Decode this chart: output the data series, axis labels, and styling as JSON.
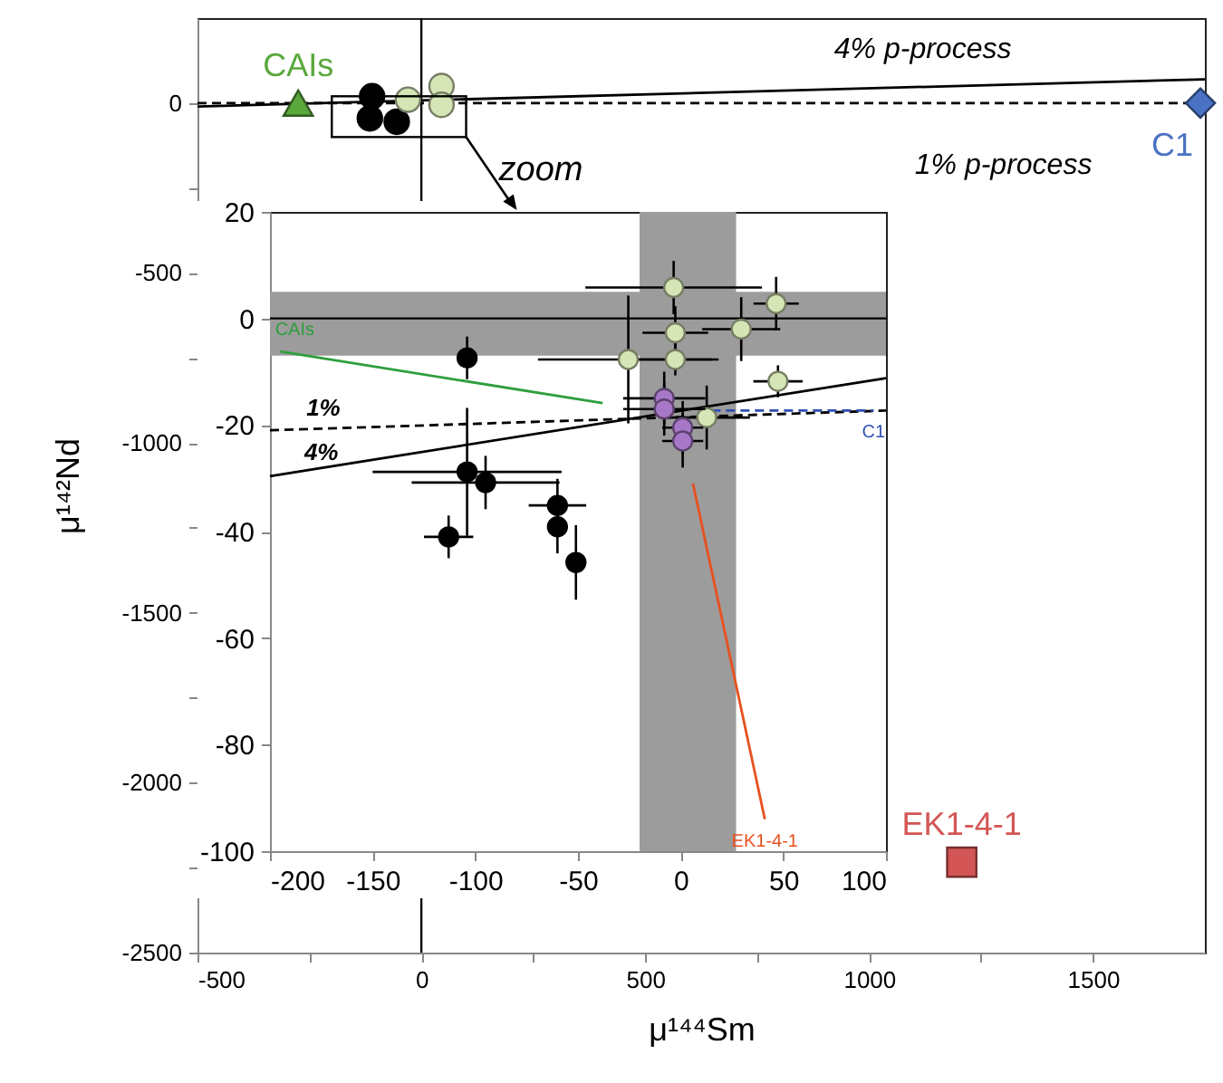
{
  "chart_data": [
    {
      "type": "scatter",
      "xlabel": "μ¹⁴⁴Sm",
      "ylabel": "μ¹⁴²Nd",
      "xlim": [
        -500,
        1750
      ],
      "ylim": [
        -2500,
        250
      ],
      "xticks": [
        -500,
        {
          "value": -250,
          "label": null
        },
        0,
        {
          "value": 250,
          "label": null
        },
        500,
        {
          "value": 750,
          "label": null
        },
        1000,
        {
          "value": 1250,
          "label": null
        },
        1500
      ],
      "yticks": [
        0,
        {
          "value": -250,
          "label": null
        },
        -500,
        {
          "value": -750,
          "label": null
        },
        -1000,
        {
          "value": -1250,
          "label": null
        },
        -1500,
        {
          "value": -1750,
          "label": null
        },
        -2000,
        {
          "value": -2250,
          "label": null
        },
        -2500
      ],
      "ref_lines": [
        {
          "axis": "x",
          "value": 0,
          "color": "#000000"
        }
      ],
      "series": [
        {
          "type": "line",
          "color": "#000000",
          "line_style": "solid",
          "x": [
            -500,
            1750
          ],
          "values": [
            -10,
            70
          ]
        },
        {
          "type": "line",
          "color": "#000000",
          "line_style": "dashed",
          "x": [
            -500,
            1750
          ],
          "values": [
            0,
            0
          ]
        },
        {
          "type": "scatter",
          "marker": "circle",
          "color": "#000000",
          "x": [
            -110,
            -115,
            -55
          ],
          "values": [
            20,
            -45,
            -55
          ]
        },
        {
          "type": "scatter",
          "marker": "circle",
          "color": "#d6e5b5",
          "x": [
            -30,
            45,
            45
          ],
          "values": [
            10,
            50,
            -5
          ]
        },
        {
          "type": "scatter",
          "name": "CAIs",
          "marker": "triangle",
          "color": "#5aa83c",
          "x": [
            -275
          ],
          "values": [
            0
          ]
        },
        {
          "type": "scatter",
          "name": "C1",
          "marker": "diamond",
          "color": "#4a72c4",
          "x": [
            1740
          ],
          "values": [
            0
          ]
        },
        {
          "type": "scatter",
          "name": "EK1-4-1",
          "marker": "square",
          "color": "#d45555",
          "x": [
            1207
          ],
          "values": [
            -2234
          ]
        }
      ],
      "annotations": [
        "4% p-process",
        "1% p-process",
        "zoom"
      ]
    },
    {
      "type": "scatter",
      "xlim": [
        -200,
        100
      ],
      "ylim": [
        -100,
        20
      ],
      "xticks": [
        -200,
        -150,
        -100,
        -50,
        0,
        50,
        100
      ],
      "yticks": [
        20,
        0,
        -20,
        -40,
        -60,
        -80,
        -100
      ],
      "bands": [
        {
          "axis": "x",
          "from": -20,
          "to": 27,
          "color": "#9c9c9c"
        },
        {
          "axis": "y",
          "from": -7,
          "to": 5,
          "color": "#9c9c9c"
        }
      ],
      "ref_lines": [
        {
          "axis": "y",
          "value": 0,
          "color": "#000000"
        }
      ],
      "series": [
        {
          "type": "line",
          "color": "#000000",
          "line_style": "dashed",
          "x": [
            -200,
            100
          ],
          "values": [
            -21,
            -17.3
          ]
        },
        {
          "type": "line",
          "color": "#000000",
          "line_style": "solid",
          "x": [
            -200,
            100
          ],
          "values": [
            -29.6,
            -11.2
          ]
        },
        {
          "type": "line",
          "name": "CAIs",
          "color": "#2e9e3e",
          "line_style": "solid",
          "x": [
            -38,
            -195
          ],
          "values": [
            -15.9,
            -6.2
          ]
        },
        {
          "type": "line",
          "name": "C1",
          "color": "#2f4fb0",
          "line_style": "dashed",
          "x": [
            15,
            94
          ],
          "values": [
            -17.3,
            -17.3
          ]
        },
        {
          "type": "line",
          "name": "EK1-4-1",
          "color": "#e8501e",
          "line_style": "solid",
          "x": [
            6,
            41
          ],
          "values": [
            -31,
            -94
          ]
        },
        {
          "type": "scatter",
          "marker": "circle",
          "color": "#000000",
          "x": [
            -104,
            -104,
            -95,
            -113,
            -60,
            -60,
            -51
          ],
          "values": [
            -7.4,
            -28.8,
            -30.8,
            -41,
            -35.1,
            -39.1,
            -45.8
          ],
          "xerrors": [
            null,
            46,
            36,
            12,
            14,
            null,
            null
          ],
          "errors": [
            4,
            12,
            5,
            4,
            5,
            5,
            7
          ]
        },
        {
          "type": "scatter",
          "marker": "circle",
          "color": "#d6e5b5",
          "x": [
            -3.4,
            46.5,
            -2.6,
            29.5,
            -25.5,
            -2.6,
            47.4,
            12.7
          ],
          "values": [
            5.8,
            2.8,
            -2.7,
            -2.0,
            -7.7,
            -7.7,
            -11.8,
            -18.6
          ],
          "xerrors": [
            43,
            11,
            16,
            19,
            44,
            18,
            12,
            21
          ],
          "errors": [
            5,
            5,
            5,
            6,
            12,
            3,
            3,
            6
          ]
        },
        {
          "type": "scatter",
          "marker": "circle",
          "color": "#a878c8",
          "x": [
            -8,
            -8,
            1,
            1
          ],
          "values": [
            -15,
            -17,
            -20.5,
            -23
          ],
          "xerrors": [
            20,
            20,
            10,
            10
          ],
          "errors": [
            5,
            5,
            5,
            5
          ]
        }
      ],
      "annotations": [
        {
          "text": "1%",
          "x": -174,
          "y": -20.6
        },
        {
          "text": "4%",
          "x": -175,
          "y": -29
        }
      ]
    }
  ]
}
